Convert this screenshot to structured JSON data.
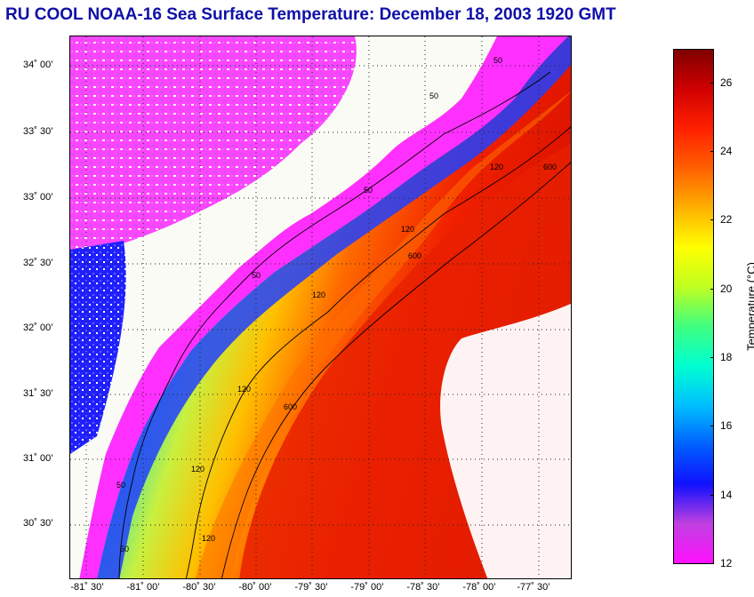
{
  "title": "RU COOL  NOAA-16  Sea Surface Temperature:  December 18, 2003 1920 GMT",
  "map": {
    "latitude_labels": [
      "34˚ 00’",
      "33˚ 30’",
      "33˚ 00’",
      "32˚ 30’",
      "32˚ 00’",
      "31˚ 30’",
      "31˚ 00’",
      "30˚ 30’"
    ],
    "longitude_labels": [
      "-81˚ 30’",
      "-81˚ 00’",
      "-80˚ 30’",
      "-80˚ 00’",
      "-79˚ 30’",
      "-79˚ 00’",
      "-78˚ 30’",
      "-78˚ 00’",
      "-77˚ 30’"
    ],
    "isobath_labels": [
      "50",
      "50",
      "50",
      "50",
      "50",
      "50",
      "120",
      "120",
      "120",
      "120",
      "120",
      "120",
      "600",
      "600",
      "600"
    ],
    "colors": {
      "land": "#fbfbf6",
      "cold": "#ff40ff",
      "warm": "#e01000"
    }
  },
  "colorbar": {
    "label": "Temperature (°C)",
    "min": 12,
    "max": 27,
    "ticks": [
      "12",
      "14",
      "16",
      "18",
      "20",
      "22",
      "24",
      "26"
    ],
    "gradient": [
      "#ff10ff",
      "#c040e0",
      "#1010ff",
      "#0060ff",
      "#00c0ff",
      "#00ffd0",
      "#40ff80",
      "#c0ff20",
      "#ffff00",
      "#ffb000",
      "#ff6000",
      "#ff2000",
      "#d00000",
      "#800000"
    ]
  }
}
